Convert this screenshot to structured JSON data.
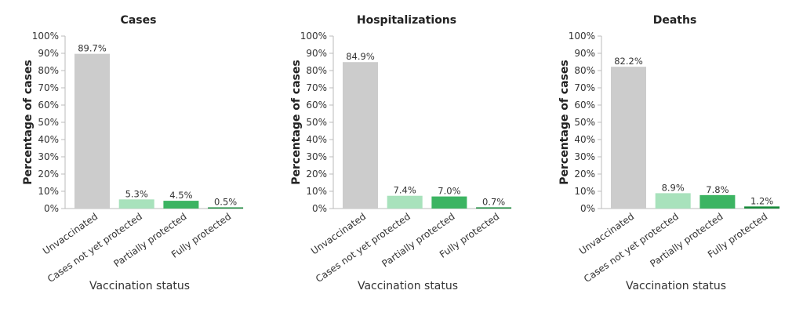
{
  "chart_data": [
    {
      "type": "bar",
      "title": "Cases",
      "xlabel": "Vaccination status",
      "ylabel": "Percentage of cases",
      "ylim": [
        0,
        100
      ],
      "yticks": [
        "0%",
        "10%",
        "20%",
        "30%",
        "40%",
        "50%",
        "60%",
        "70%",
        "80%",
        "90%",
        "100%"
      ],
      "categories": [
        "Unvaccinated",
        "Cases not yet protected",
        "Partially protected",
        "Fully protected"
      ],
      "values": [
        89.7,
        5.3,
        4.5,
        0.5
      ],
      "value_labels": [
        "89.7%",
        "5.3%",
        "4.5%",
        "0.5%"
      ],
      "colors": [
        "#cccccc",
        "#a8e2bc",
        "#3cb462",
        "#178a3a"
      ],
      "grid": false
    },
    {
      "type": "bar",
      "title": "Hospitalizations",
      "xlabel": "Vaccination status",
      "ylabel": "Percentage of cases",
      "ylim": [
        0,
        100
      ],
      "yticks": [
        "0%",
        "10%",
        "20%",
        "30%",
        "40%",
        "50%",
        "60%",
        "70%",
        "80%",
        "90%",
        "100%"
      ],
      "categories": [
        "Unvaccinated",
        "Cases not yet protected",
        "Partially protected",
        "Fully protected"
      ],
      "values": [
        84.9,
        7.4,
        7.0,
        0.7
      ],
      "value_labels": [
        "84.9%",
        "7.4%",
        "7.0%",
        "0.7%"
      ],
      "colors": [
        "#cccccc",
        "#a8e2bc",
        "#3cb462",
        "#178a3a"
      ],
      "grid": false
    },
    {
      "type": "bar",
      "title": "Deaths",
      "xlabel": "Vaccination status",
      "ylabel": "Percentage of cases",
      "ylim": [
        0,
        100
      ],
      "yticks": [
        "0%",
        "10%",
        "20%",
        "30%",
        "40%",
        "50%",
        "60%",
        "70%",
        "80%",
        "90%",
        "100%"
      ],
      "categories": [
        "Unvaccinated",
        "Cases not yet protected",
        "Partially protected",
        "Fully protected"
      ],
      "values": [
        82.2,
        8.9,
        7.8,
        1.2
      ],
      "value_labels": [
        "82.2%",
        "8.9%",
        "7.8%",
        "1.2%"
      ],
      "colors": [
        "#cccccc",
        "#a8e2bc",
        "#3cb462",
        "#178a3a"
      ],
      "grid": false
    }
  ]
}
